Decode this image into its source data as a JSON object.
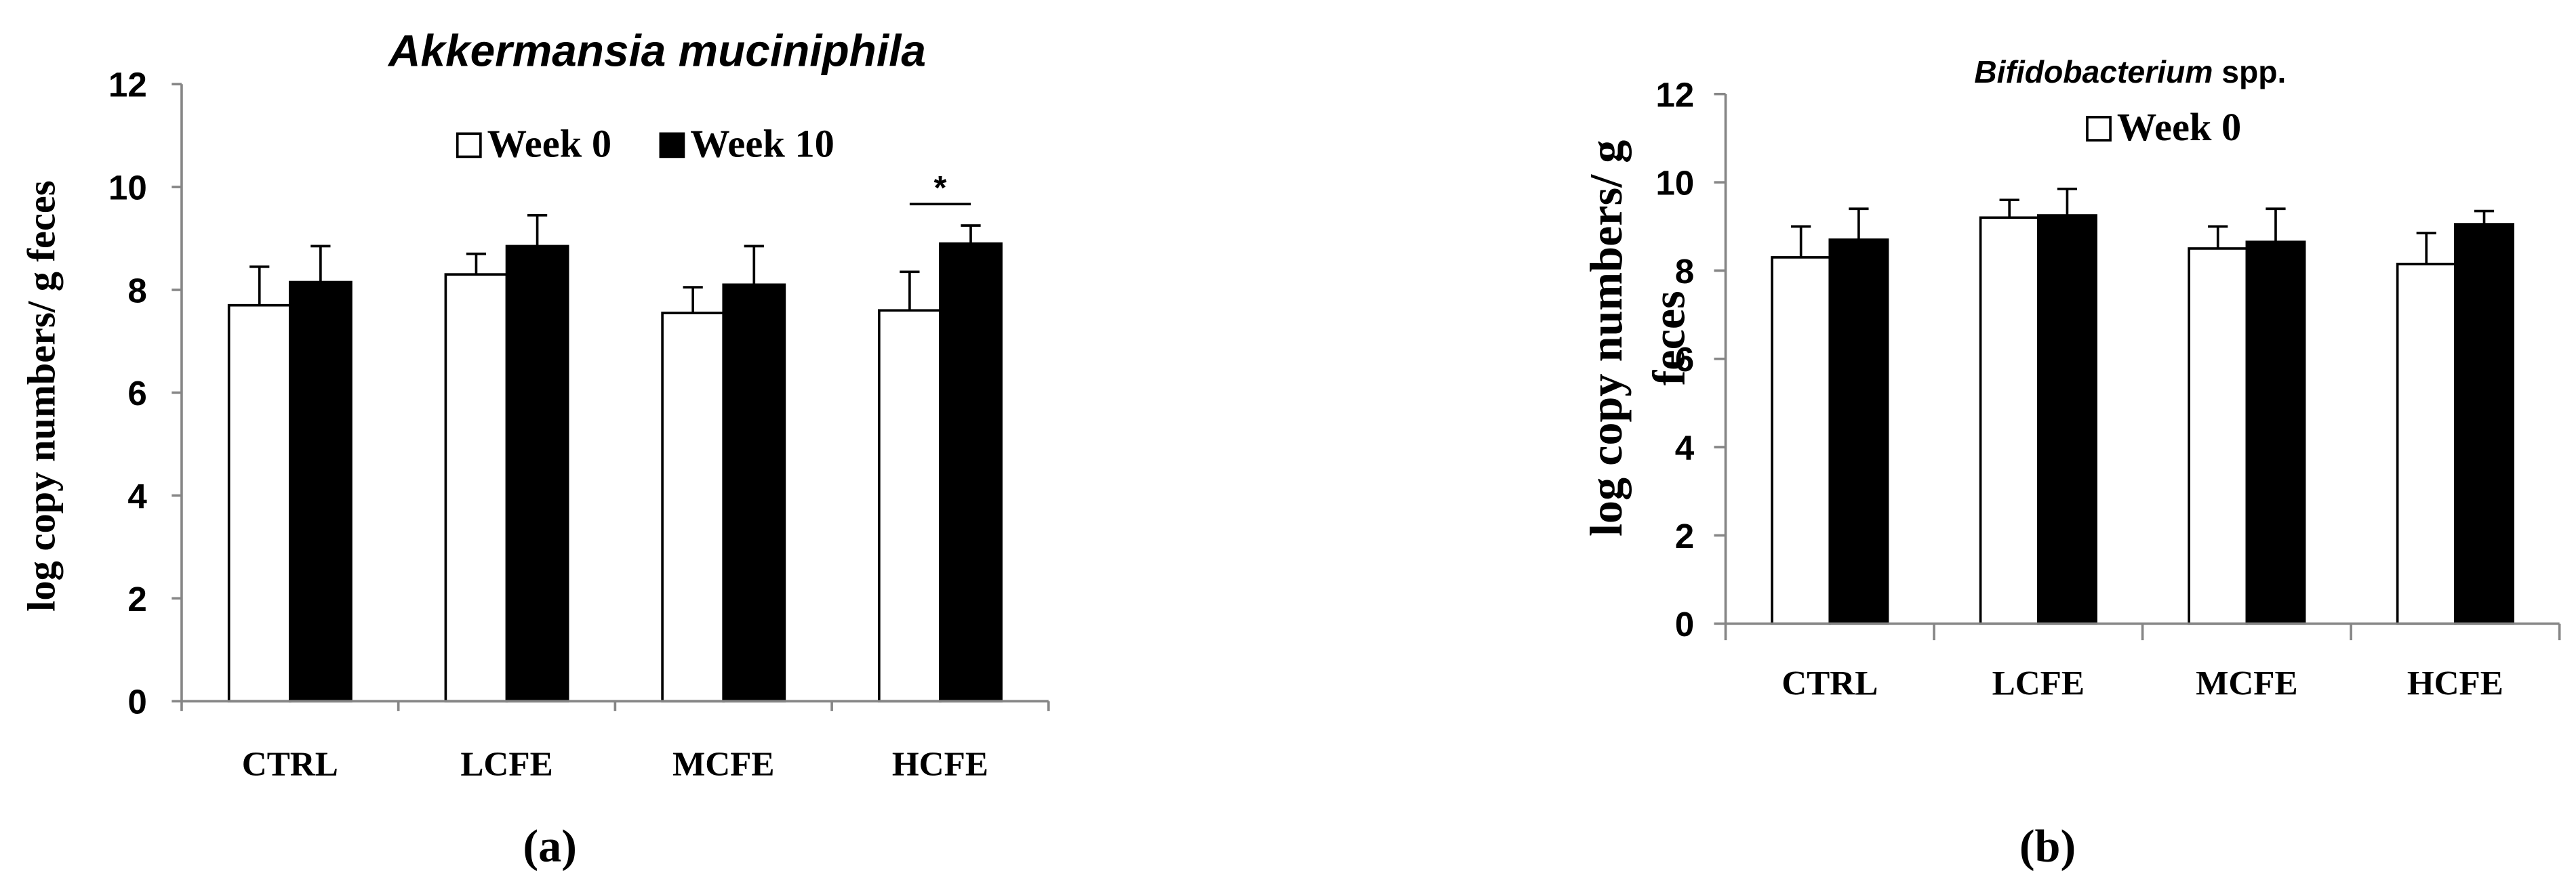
{
  "chart_data": [
    {
      "type": "bar",
      "title": {
        "italic": "Akkermansia muciniphila"
      },
      "panel_label": "(a)",
      "ylabel_lines": [
        "log copy numbers/ g feces"
      ],
      "xlabel": "",
      "ylim": [
        0,
        12
      ],
      "yticks": [
        0,
        2,
        4,
        6,
        8,
        10,
        12
      ],
      "grid": false,
      "legend": "top-center",
      "categories": [
        "CTRL",
        "LCFE",
        "MCFE",
        "HCFE"
      ],
      "series": [
        {
          "name": "Week 0",
          "color": "#ffffff",
          "values": [
            7.7,
            8.3,
            7.55,
            7.6
          ],
          "error": [
            0.75,
            0.4,
            0.5,
            0.75
          ]
        },
        {
          "name": "Week 10",
          "color": "#000000",
          "values": [
            8.15,
            8.85,
            8.1,
            8.9
          ],
          "error": [
            0.7,
            0.6,
            0.75,
            0.35
          ]
        }
      ],
      "annotations": [
        {
          "category": "HCFE",
          "text": "*"
        }
      ]
    },
    {
      "type": "bar",
      "title": {
        "italic": "Bifidobacterium",
        "plain": "spp."
      },
      "panel_label": "(b)",
      "ylabel_lines": [
        "log copy numbers/ g",
        "feces"
      ],
      "xlabel": "",
      "ylim": [
        0,
        12
      ],
      "yticks": [
        0,
        2,
        4,
        6,
        8,
        10,
        12
      ],
      "grid": false,
      "legend": "top-center",
      "categories": [
        "CTRL",
        "LCFE",
        "MCFE",
        "HCFE"
      ],
      "series": [
        {
          "name": "Week 0",
          "color": "#ffffff",
          "values": [
            8.3,
            9.2,
            8.5,
            8.15
          ],
          "error": [
            0.7,
            0.4,
            0.5,
            0.7
          ]
        },
        {
          "name": "",
          "color": "#000000",
          "values": [
            8.7,
            9.25,
            8.65,
            9.05
          ],
          "error": [
            0.7,
            0.6,
            0.75,
            0.3
          ]
        }
      ],
      "annotations": []
    }
  ]
}
